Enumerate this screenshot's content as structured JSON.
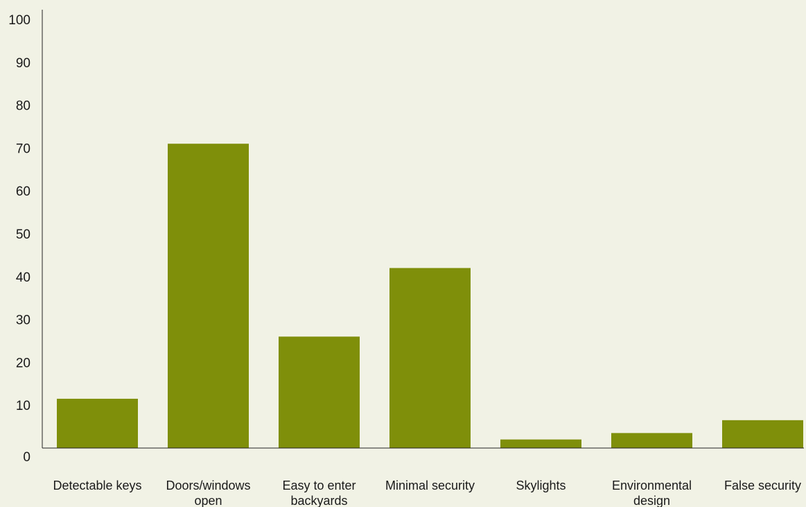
{
  "chart_data": {
    "type": "bar",
    "categories": [
      [
        "Detectable keys"
      ],
      [
        "Doors/windows",
        "open"
      ],
      [
        "Easy to enter",
        "backyards"
      ],
      [
        "Minimal security"
      ],
      [
        "Skylights"
      ],
      [
        "Environmental",
        "design"
      ],
      [
        "False security"
      ]
    ],
    "values": [
      11.5,
      71,
      26,
      42,
      2,
      3.5,
      6.5
    ],
    "ylim": [
      0,
      100
    ],
    "yticks": [
      0,
      10,
      20,
      30,
      40,
      50,
      60,
      70,
      80,
      90,
      100
    ],
    "title": "",
    "xlabel": "",
    "ylabel": "",
    "grid": false,
    "legend": "none",
    "bar_color": "#7f8f0a",
    "axis_color": "#222222",
    "background": "#f1f2e5"
  }
}
